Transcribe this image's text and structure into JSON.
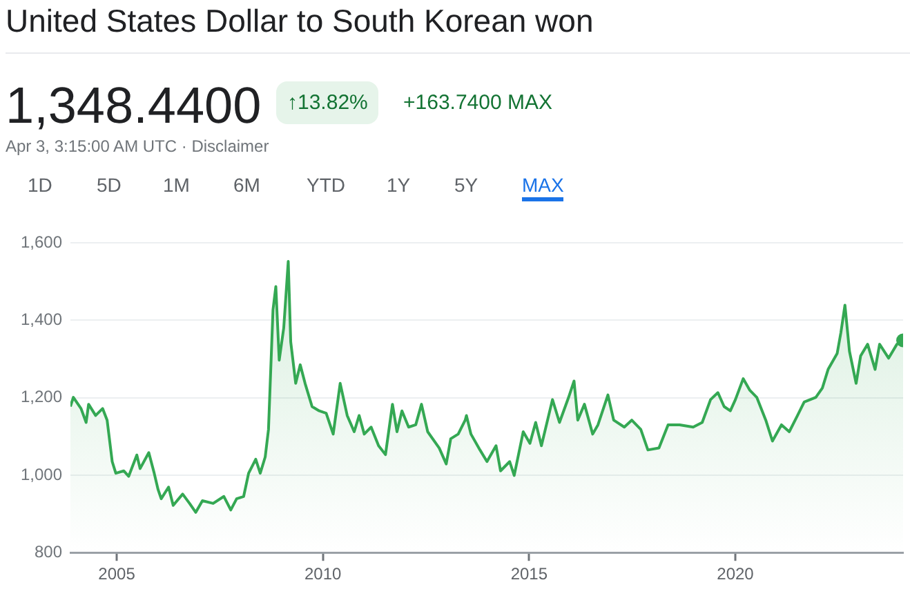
{
  "chart_data": {
    "type": "area",
    "title": "United States Dollar to South Korean won",
    "subtitle": "1,348.4400",
    "annotations": [
      "↑13.82%",
      "+163.7400 MAX",
      "Apr 3, 3:15:00 AM UTC · Disclaimer",
      "1D",
      "5D",
      "1M",
      "6M",
      "YTD",
      "1Y",
      "5Y",
      "MAX"
    ],
    "x": [
      "2003-11-18",
      "2003-12-14",
      "2004-02-20",
      "2004-04-05",
      "2004-04-27",
      "2004-06-28",
      "2004-08-29",
      "2004-10-08",
      "2004-11-22",
      "2004-12-24",
      "2005-03-04",
      "2005-04-17",
      "2005-06-28",
      "2005-07-27",
      "2005-10-12",
      "2005-11-29",
      "2006-01-02",
      "2006-01-30",
      "2006-04-05",
      "2006-05-16",
      "2006-08-08",
      "2006-10-08",
      "2006-12-02",
      "2007-01-30",
      "2007-05-05",
      "2007-08-08",
      "2007-10-08",
      "2007-11-29",
      "2008-01-30",
      "2008-03-14",
      "2008-05-16",
      "2008-06-25",
      "2008-08-08",
      "2008-09-06",
      "2008-10-16",
      "2008-11-10",
      "2008-12-10",
      "2009-01-19",
      "2009-02-28",
      "2009-03-22",
      "2009-05-05",
      "2009-06-14",
      "2009-07-27",
      "2009-09-27",
      "2009-11-29",
      "2010-01-30",
      "2010-04-02",
      "2010-06-03",
      "2010-08-04",
      "2010-10-05",
      "2010-11-18",
      "2011-01-02",
      "2011-03-04",
      "2011-05-09",
      "2011-07-09",
      "2011-09-09",
      "2011-10-19",
      "2011-12-02",
      "2012-01-30",
      "2012-04-02",
      "2012-05-23",
      "2012-07-17",
      "2012-10-27",
      "2012-12-28",
      "2013-02-06",
      "2013-04-13",
      "2013-06-14",
      "2013-06-25",
      "2013-08-04",
      "2013-10-23",
      "2013-12-24",
      "2014-03-14",
      "2014-04-23",
      "2014-07-13",
      "2014-08-22",
      "2014-11-10",
      "2015-01-08",
      "2015-02-28",
      "2015-04-20",
      "2015-07-27",
      "2015-09-27",
      "2015-12-17",
      "2016-02-03",
      "2016-03-07",
      "2016-05-05",
      "2016-07-17",
      "2016-09-02",
      "2016-11-29",
      "2017-01-19",
      "2017-04-23",
      "2017-06-28",
      "2017-09-16",
      "2017-11-18",
      "2018-02-24",
      "2018-05-16",
      "2018-08-26",
      "2018-12-24",
      "2019-03-14",
      "2019-05-27",
      "2019-07-31",
      "2019-09-24",
      "2019-11-18",
      "2020-01-02",
      "2020-03-11",
      "2020-05-09",
      "2020-07-09",
      "2020-09-27",
      "2020-11-25",
      "2021-02-13",
      "2021-04-23",
      "2021-07-05",
      "2021-09-02",
      "2021-12-14",
      "2022-02-10",
      "2022-04-02",
      "2022-06-21",
      "2022-07-24",
      "2022-08-29",
      "2022-10-08",
      "2022-12-06",
      "2023-01-15",
      "2023-03-18",
      "2023-05-23",
      "2023-07-02",
      "2023-09-20",
      "2023-12-02",
      "2024-01-26"
    ],
    "values": [
      1177,
      1201,
      1172,
      1136,
      1183,
      1154,
      1172,
      1142,
      1035,
      1005,
      1011,
      997,
      1052,
      1017,
      1058,
      1005,
      963,
      939,
      969,
      922,
      951,
      927,
      904,
      934,
      927,
      945,
      910,
      939,
      945,
      1005,
      1041,
      1005,
      1047,
      1118,
      1427,
      1487,
      1297,
      1380,
      1552,
      1344,
      1237,
      1285,
      1237,
      1177,
      1166,
      1160,
      1106,
      1237,
      1154,
      1112,
      1154,
      1106,
      1124,
      1076,
      1053,
      1183,
      1112,
      1166,
      1124,
      1130,
      1183,
      1112,
      1070,
      1029,
      1094,
      1106,
      1142,
      1154,
      1106,
      1065,
      1035,
      1076,
      1011,
      1035,
      999,
      1112,
      1082,
      1136,
      1076,
      1195,
      1136,
      1201,
      1243,
      1142,
      1183,
      1106,
      1130,
      1207,
      1142,
      1124,
      1142,
      1118,
      1065,
      1070,
      1130,
      1130,
      1124,
      1136,
      1195,
      1213,
      1177,
      1166,
      1195,
      1249,
      1219,
      1201,
      1142,
      1088,
      1130,
      1112,
      1154,
      1189,
      1201,
      1225,
      1273,
      1314,
      1368,
      1439,
      1320,
      1237,
      1308,
      1338,
      1273,
      1338,
      1302,
      1338,
      1348
    ],
    "color": "#34a853",
    "xlim": [
      "2003-11-18",
      "2024-01-26"
    ],
    "xticks": [
      "2005",
      "2010",
      "2015",
      "2020"
    ],
    "ylim": [
      800,
      1600
    ],
    "yticks": [
      {
        "value": 800,
        "label": "800"
      },
      {
        "value": 1000,
        "label": "1,000"
      },
      {
        "value": 1200,
        "label": "1,200"
      },
      {
        "value": 1400,
        "label": "1,400"
      },
      {
        "value": 1600,
        "label": "1,600"
      }
    ],
    "grid": "y"
  }
}
